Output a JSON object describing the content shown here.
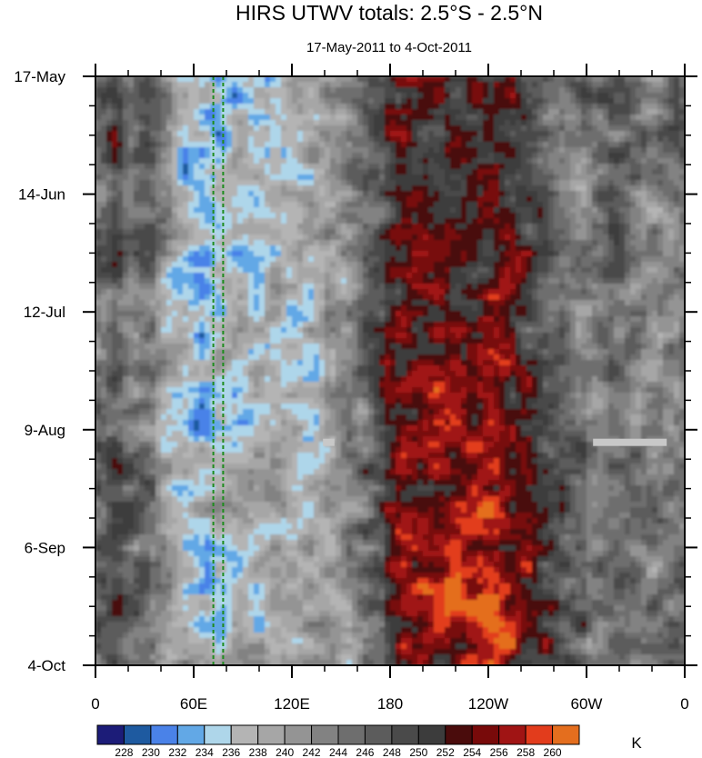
{
  "chart_data": {
    "type": "heatmap",
    "title": "HIRS UTWV totals: 2.5°S - 2.5°N",
    "subtitle": "17-May-2011 to 4-Oct-2011",
    "x_tick_labels": [
      "0",
      "60E",
      "120E",
      "180",
      "120W",
      "60W",
      "0"
    ],
    "x_range_deg_east": [
      0,
      360
    ],
    "y_tick_labels": [
      "17-May",
      "14-Jun",
      "12-Jul",
      "9-Aug",
      "6-Sep",
      "4-Oct"
    ],
    "y_range": [
      "2011-05-17",
      "2011-10-04"
    ],
    "colorbar": {
      "levels": [
        228,
        230,
        232,
        234,
        236,
        238,
        240,
        242,
        244,
        246,
        248,
        250,
        252,
        254,
        256,
        258,
        260
      ],
      "colors": [
        "#1c1c78",
        "#1e5aa0",
        "#4a82e8",
        "#62a8e6",
        "#aed6ea",
        "#b4b4b4",
        "#a6a6a6",
        "#949494",
        "#828282",
        "#6e6e6e",
        "#5c5c5c",
        "#4a4a4a",
        "#3c3c3c",
        "#4a0c0c",
        "#780a0a",
        "#a01414",
        "#e23c1c",
        "#e46e1e"
      ],
      "unit": "K"
    },
    "reference_lines_longitude": [
      72,
      78
    ],
    "missing_data_segments": [
      {
        "date": "2011-08-12",
        "lon_start": 139,
        "lon_end": 146
      },
      {
        "date": "2011-08-12",
        "lon_start": 304,
        "lon_end": 349
      }
    ],
    "description_features": {
      "wet_band_lon_range": [
        20,
        150
      ],
      "dry_band_lon_range": [
        180,
        240
      ]
    }
  },
  "colors": {
    "reference_line": "#1e8c1e",
    "missing": "#c8c8c8",
    "frame": "#000000"
  }
}
